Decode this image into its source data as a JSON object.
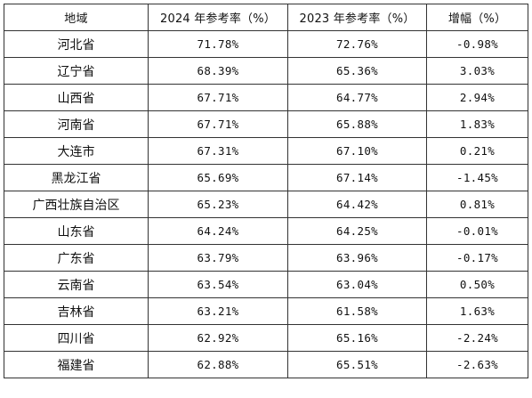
{
  "table": {
    "headers": [
      "地域",
      "2024 年参考率（%）",
      "2023 年参考率（%）",
      "增幅（%）"
    ],
    "rows": [
      {
        "region": "河北省",
        "rate_2024": "71.78%",
        "rate_2023": "72.76%",
        "change": "-0.98%"
      },
      {
        "region": "辽宁省",
        "rate_2024": "68.39%",
        "rate_2023": "65.36%",
        "change": "3.03%"
      },
      {
        "region": "山西省",
        "rate_2024": "67.71%",
        "rate_2023": "64.77%",
        "change": "2.94%"
      },
      {
        "region": "河南省",
        "rate_2024": "67.71%",
        "rate_2023": "65.88%",
        "change": "1.83%"
      },
      {
        "region": "大连市",
        "rate_2024": "67.31%",
        "rate_2023": "67.10%",
        "change": "0.21%"
      },
      {
        "region": "黑龙江省",
        "rate_2024": "65.69%",
        "rate_2023": "67.14%",
        "change": "-1.45%"
      },
      {
        "region": "广西壮族自治区",
        "rate_2024": "65.23%",
        "rate_2023": "64.42%",
        "change": "0.81%"
      },
      {
        "region": "山东省",
        "rate_2024": "64.24%",
        "rate_2023": "64.25%",
        "change": "-0.01%"
      },
      {
        "region": "广东省",
        "rate_2024": "63.79%",
        "rate_2023": "63.96%",
        "change": "-0.17%"
      },
      {
        "region": "云南省",
        "rate_2024": "63.54%",
        "rate_2023": "63.04%",
        "change": "0.50%"
      },
      {
        "region": "吉林省",
        "rate_2024": "63.21%",
        "rate_2023": "61.58%",
        "change": "1.63%"
      },
      {
        "region": "四川省",
        "rate_2024": "62.92%",
        "rate_2023": "65.16%",
        "change": "-2.24%"
      },
      {
        "region": "福建省",
        "rate_2024": "62.88%",
        "rate_2023": "65.51%",
        "change": "-2.63%"
      }
    ]
  }
}
